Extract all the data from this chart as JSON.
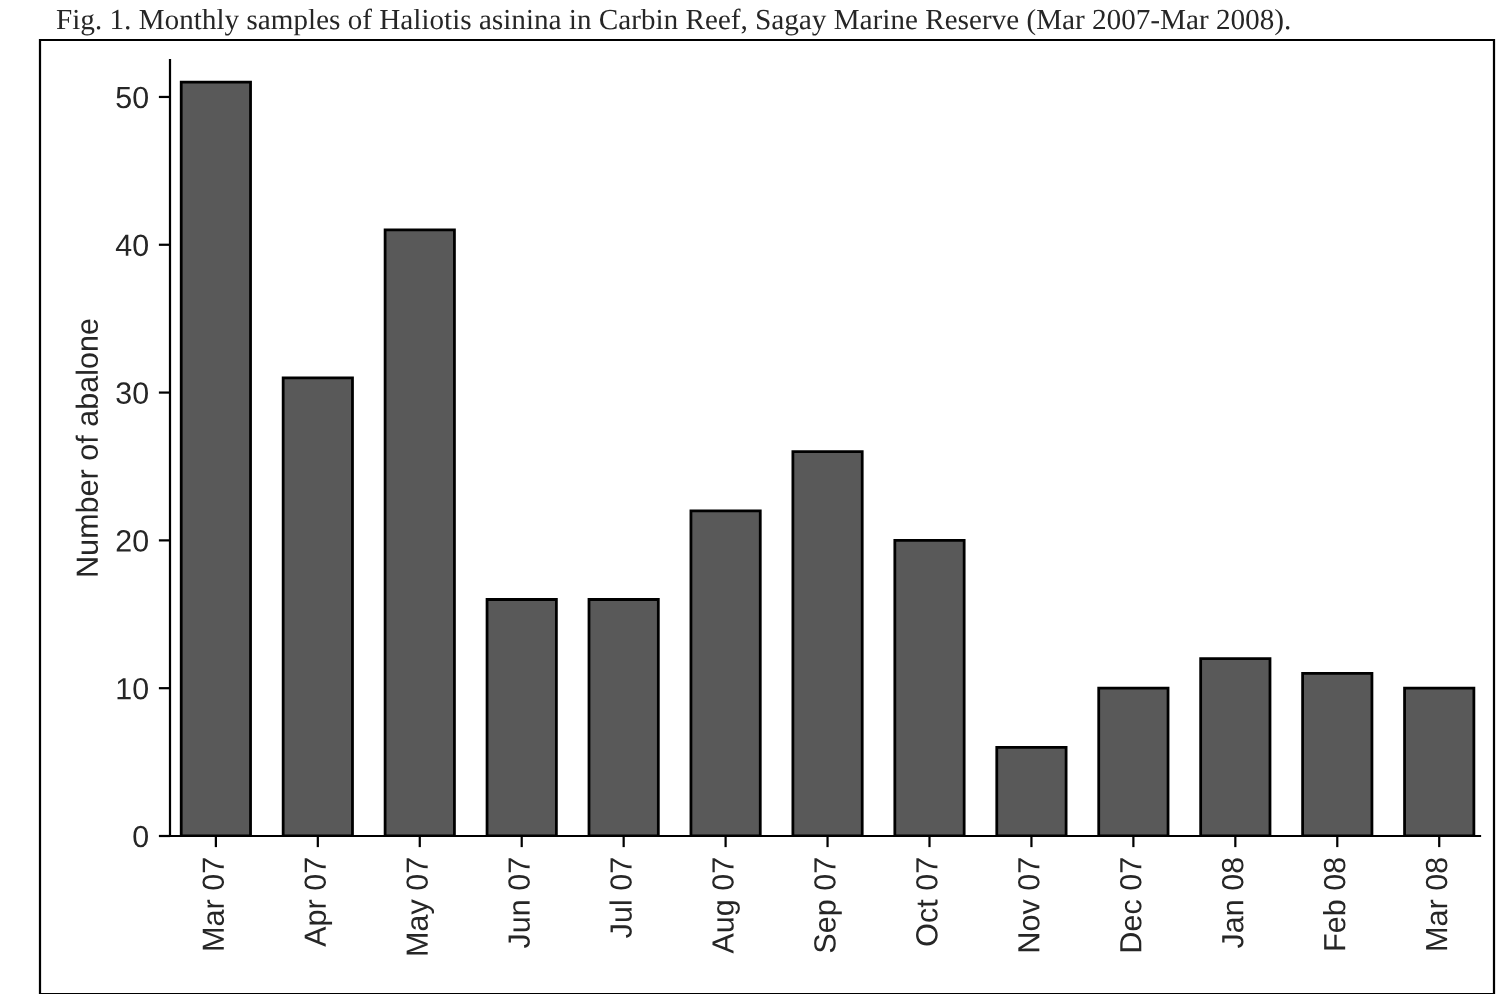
{
  "chart_data": {
    "type": "bar",
    "title": "Fig. 1. Monthly samples of Haliotis asinina in Carbin Reef, Sagay Marine Reserve (Mar 2007-Mar 2008).",
    "ylabel": "Number of abalone",
    "categories": [
      "Mar 07",
      "Apr 07",
      "May 07",
      "Jun 07",
      "Jul 07",
      "Aug 07",
      "Sep 07",
      "Oct 07",
      "Nov 07",
      "Dec 07",
      "Jan 08",
      "Feb 08",
      "Mar 08"
    ],
    "values": [
      51,
      31,
      41,
      16,
      16,
      22,
      26,
      20,
      6,
      10,
      12,
      11,
      10
    ],
    "color": "#595959",
    "ylim": [
      0,
      52.5
    ],
    "yticks": [
      0,
      10,
      20,
      30,
      40,
      50
    ],
    "grid": false,
    "legend": false
  }
}
